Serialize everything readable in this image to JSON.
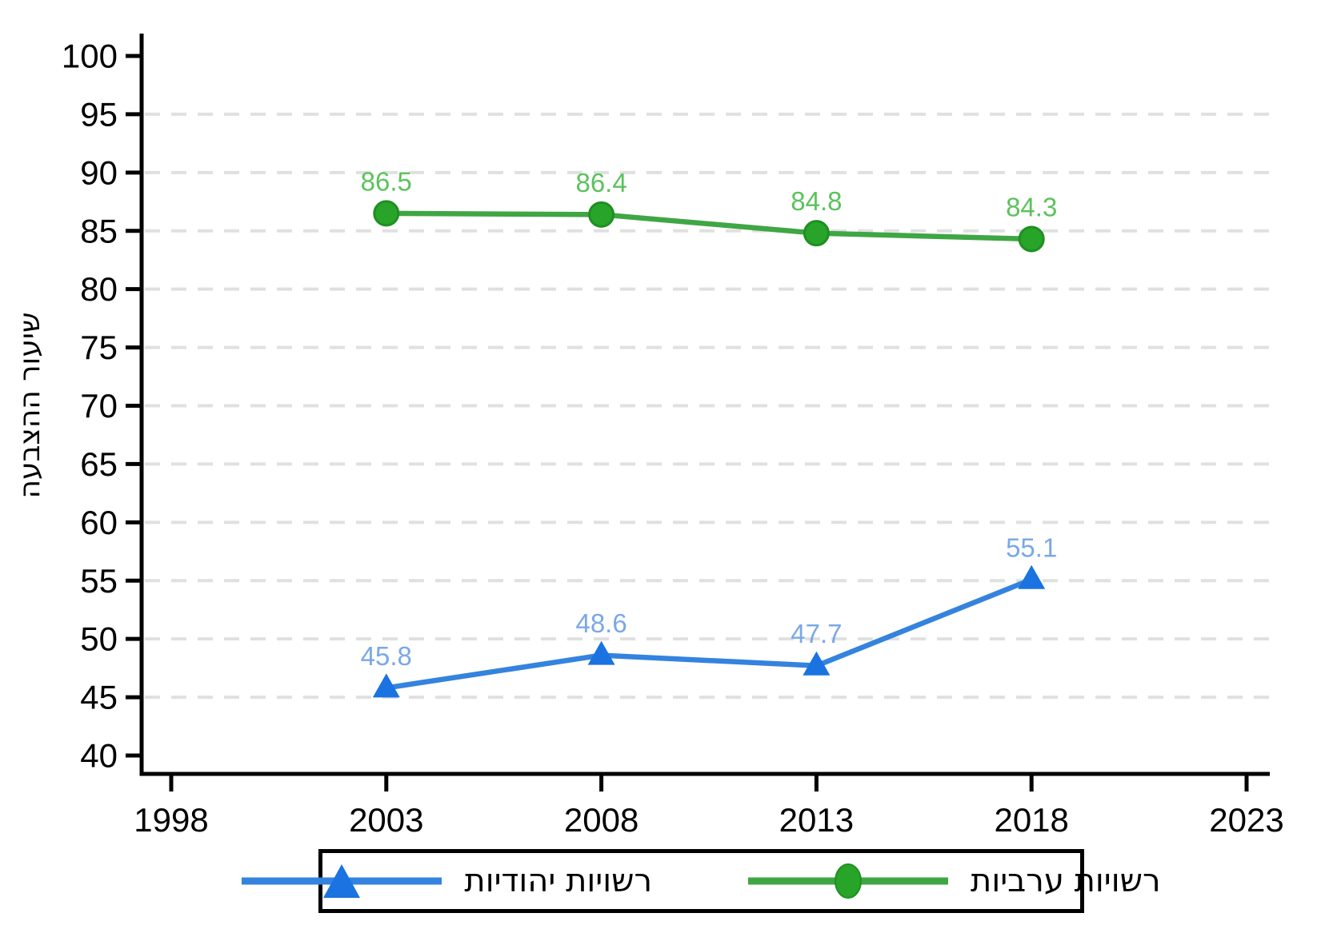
{
  "chart_data": {
    "type": "line",
    "x": [
      2003,
      2008,
      2013,
      2018
    ],
    "series": [
      {
        "name": "רשויות יהודיות",
        "values": [
          45.8,
          48.6,
          47.7,
          55.1
        ],
        "marker": "triangle",
        "line_color": "#3483de",
        "marker_color": "#1a73e0",
        "label_color": "#7aa8e6"
      },
      {
        "name": "רשויות ערביות",
        "values": [
          86.5,
          86.4,
          84.8,
          84.3
        ],
        "marker": "circle",
        "line_color": "#3fa644",
        "marker_color": "#28a428",
        "marker_stroke": "#1f8f22",
        "label_color": "#5cc25c"
      }
    ],
    "title": "",
    "xlabel": "",
    "ylabel": "שיעור ההצבעה",
    "xlim": [
      1998,
      2023
    ],
    "ylim": [
      40,
      100
    ],
    "xticks": [
      1998,
      2003,
      2008,
      2013,
      2018,
      2023
    ],
    "yticks": [
      40,
      45,
      50,
      55,
      60,
      65,
      70,
      75,
      80,
      85,
      90,
      95,
      100
    ],
    "grid": "horizontal-dashed-at-45-to-95",
    "gridline_color": "#e0e0e0",
    "axis_color": "#000000",
    "legend_position": "bottom-center"
  }
}
